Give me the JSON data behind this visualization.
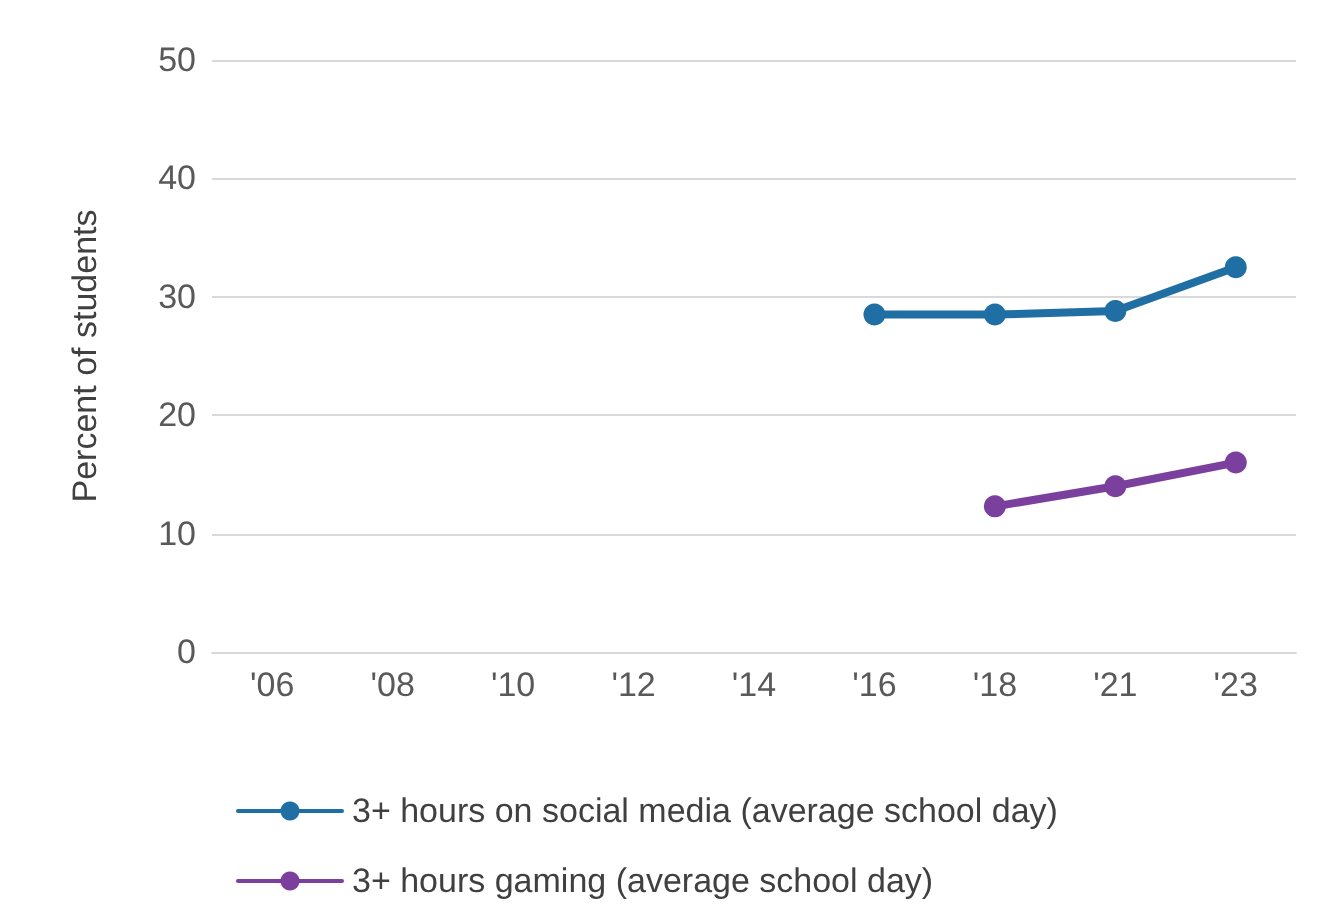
{
  "chart_data": {
    "type": "line",
    "ylabel": "Percent of students",
    "categories": [
      "'06",
      "'08",
      "'10",
      "'12",
      "'14",
      "'16",
      "'18",
      "'21",
      "'23"
    ],
    "series": [
      {
        "name": "3+ hours on social media (average school day)",
        "color": "#1f6fa5",
        "values": [
          null,
          null,
          null,
          null,
          null,
          28.5,
          28.5,
          28.8,
          32.5
        ]
      },
      {
        "name": "3+ hours gaming (average school day)",
        "color": "#7b3f9e",
        "values": [
          null,
          null,
          null,
          null,
          null,
          null,
          12.3,
          14,
          16
        ]
      }
    ],
    "ylim": [
      0,
      50
    ],
    "yticks": [
      0,
      10,
      20,
      30,
      40,
      50
    ],
    "grid": "y",
    "legend": "bottom",
    "marker": "circle",
    "line_style": "solid"
  }
}
